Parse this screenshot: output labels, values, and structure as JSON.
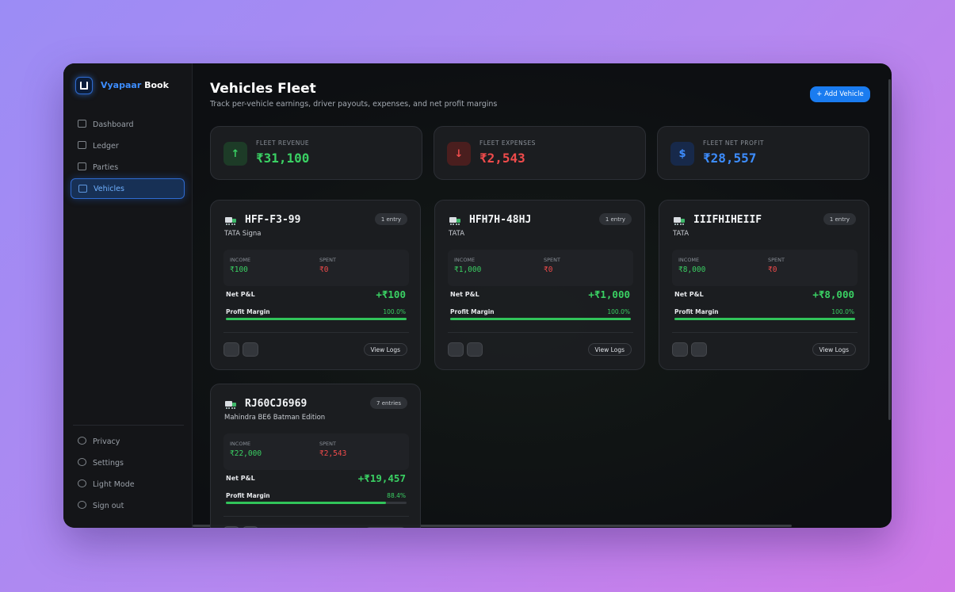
{
  "brand": {
    "first": "Vyapaar",
    "second": "Book"
  },
  "nav": [
    {
      "label": "Dashboard",
      "active": false
    },
    {
      "label": "Ledger",
      "active": false
    },
    {
      "label": "Parties",
      "active": false
    },
    {
      "label": "Vehicles",
      "active": true
    }
  ],
  "footer_nav": [
    "Privacy",
    "Settings",
    "Light Mode",
    "Sign out"
  ],
  "header": {
    "title": "Vehicles Fleet",
    "subtitle": "Track per-vehicle earnings, driver payouts, expenses, and net profit margins",
    "button": "+ Add Vehicle"
  },
  "stats": [
    {
      "label": "FLEET REVENUE",
      "value": "₹31,100",
      "icon": "↑",
      "tone": "green"
    },
    {
      "label": "FLEET EXPENSES",
      "value": "₹2,543",
      "icon": "↓",
      "tone": "red"
    },
    {
      "label": "FLEET NET PROFIT",
      "value": "₹28,557",
      "icon": "$",
      "tone": "blue"
    }
  ],
  "labels": {
    "income": "INCOME",
    "spent": "SPENT",
    "pnl": "Net P&L",
    "margin": "Profit Margin",
    "view": "View Logs"
  },
  "vehicles": [
    {
      "plate": "HFF-F3-99",
      "model": "TATA Signa",
      "entries": "1 entry",
      "income": "₹100",
      "spent": "₹0",
      "pnl": "+₹100",
      "margin": {
        "value": 100.0,
        "label": "100.0%"
      }
    },
    {
      "plate": "HFH7H-48HJ",
      "model": "TATA",
      "entries": "1 entry",
      "income": "₹1,000",
      "spent": "₹0",
      "pnl": "+₹1,000",
      "margin": {
        "value": 100.0,
        "label": "100.0%"
      }
    },
    {
      "plate": "IIIFHIHEIIF",
      "model": "TATA",
      "entries": "1 entry",
      "income": "₹8,000",
      "spent": "₹0",
      "pnl": "+₹8,000",
      "margin": {
        "value": 100.0,
        "label": "100.0%"
      }
    },
    {
      "plate": "RJ60CJ6969",
      "model": "Mahindra BE6 Batman Edition",
      "entries": "7 entries",
      "income": "₹22,000",
      "spent": "₹2,543",
      "pnl": "+₹19,457",
      "margin": {
        "value": 88.4,
        "label": "88.4%"
      }
    }
  ]
}
